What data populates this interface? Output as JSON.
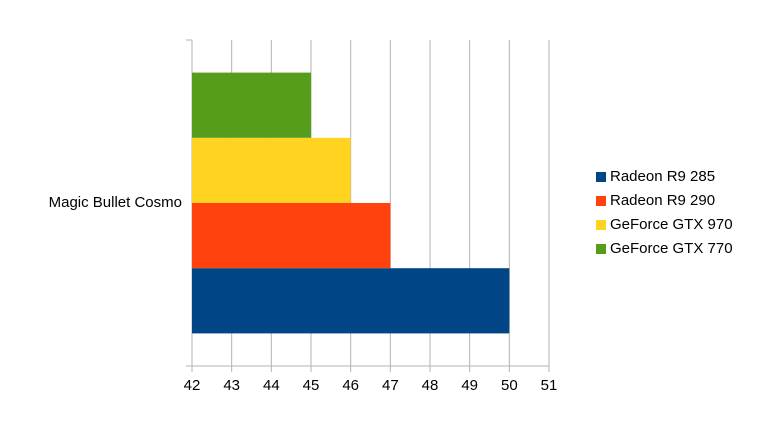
{
  "chart_data": {
    "type": "bar",
    "orientation": "horizontal",
    "categories": [
      "Magic Bullet Cosmo"
    ],
    "series": [
      {
        "name": "Radeon R9 285",
        "color": "#004586",
        "values": [
          50
        ]
      },
      {
        "name": "Radeon R9 290",
        "color": "#ff420e",
        "values": [
          47
        ]
      },
      {
        "name": "GeForce GTX 970",
        "color": "#ffd320",
        "values": [
          46
        ]
      },
      {
        "name": "GeForce GTX 770",
        "color": "#579d1c",
        "values": [
          45
        ]
      }
    ],
    "xlim": [
      42,
      51
    ],
    "xticks": [
      42,
      43,
      44,
      45,
      46,
      47,
      48,
      49,
      50,
      51
    ],
    "grid": true,
    "legend": "right"
  }
}
